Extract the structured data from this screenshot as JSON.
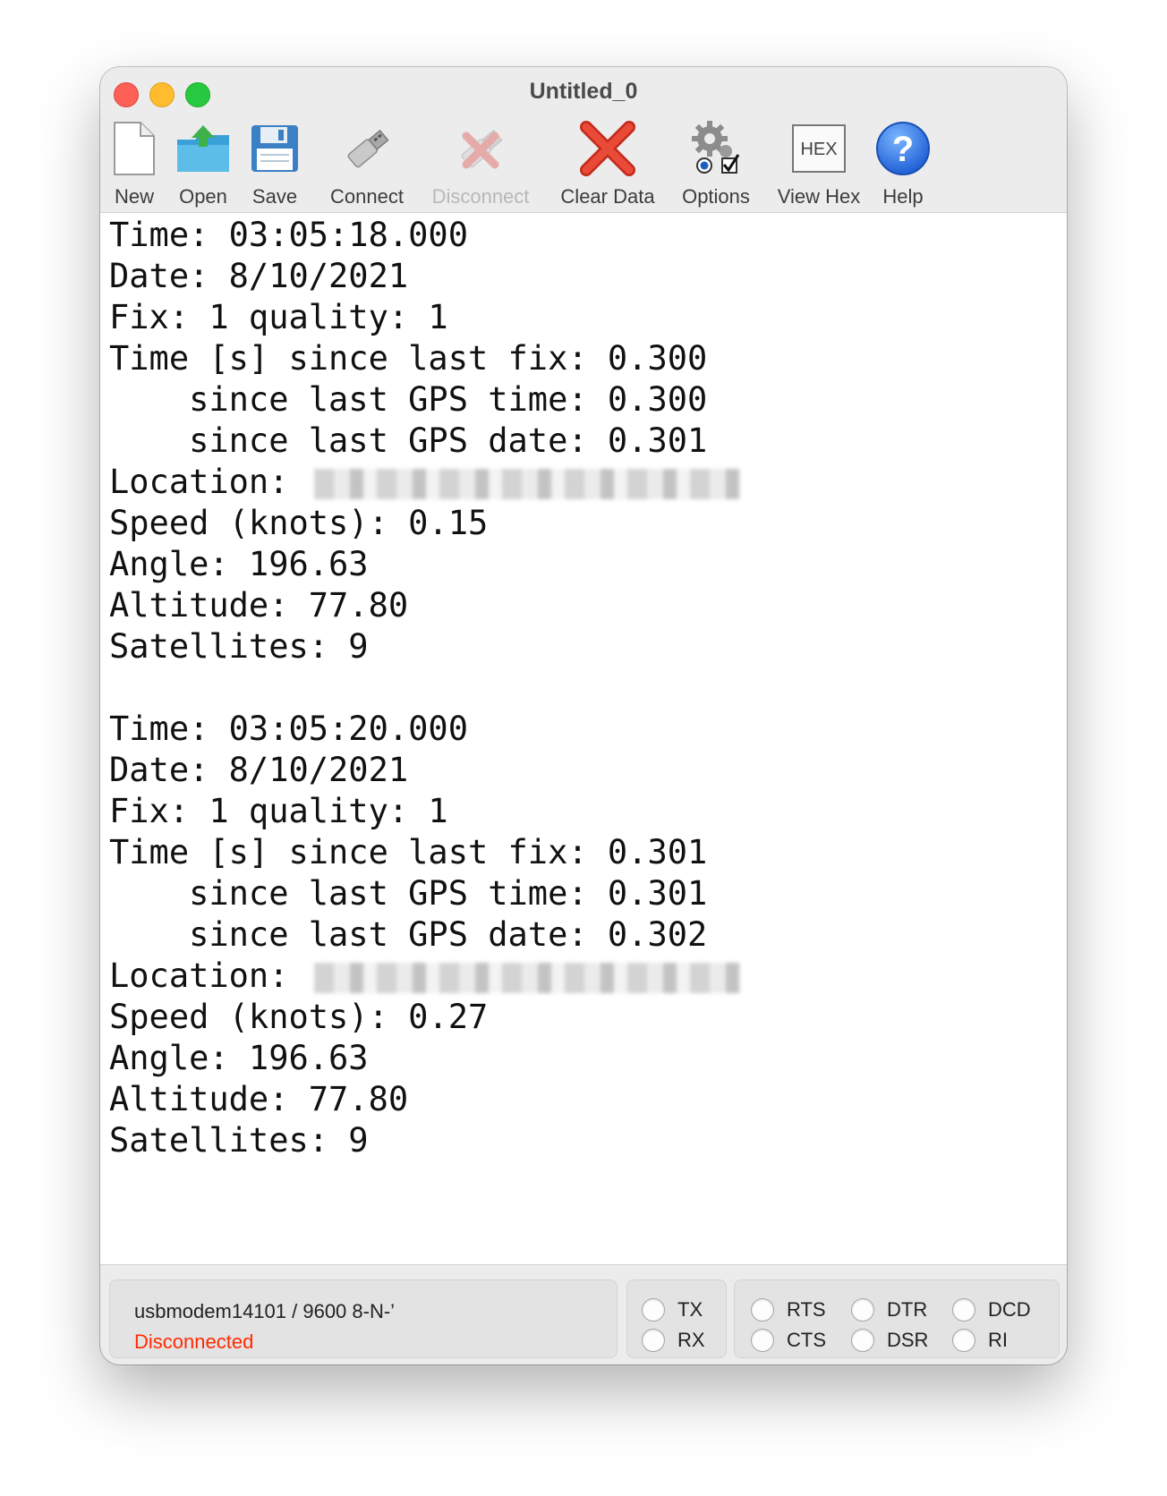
{
  "window": {
    "title": "Untitled_0"
  },
  "toolbar": {
    "items": [
      {
        "label": "New",
        "icon": "new-document-icon",
        "enabled": true
      },
      {
        "label": "Open",
        "icon": "folder-open-icon",
        "enabled": true
      },
      {
        "label": "Save",
        "icon": "floppy-disk-icon",
        "enabled": true
      },
      {
        "label": "Connect",
        "icon": "usb-plug-icon",
        "enabled": true
      },
      {
        "label": "Disconnect",
        "icon": "usb-disconnect-icon",
        "enabled": false
      },
      {
        "label": "Clear Data",
        "icon": "red-x-icon",
        "enabled": true
      },
      {
        "label": "Options",
        "icon": "gear-options-icon",
        "enabled": true
      },
      {
        "label": "View Hex",
        "icon": "hex-icon",
        "icon_text": "HEX",
        "enabled": true
      },
      {
        "label": "Help",
        "icon": "help-question-icon",
        "enabled": true
      }
    ]
  },
  "terminal": {
    "lines": [
      "Time: 03:05:18.000",
      "Date: 8/10/2021",
      "Fix: 1 quality: 1",
      "Time [s] since last fix: 0.300",
      "    since last GPS time: 0.300",
      "    since last GPS date: 0.301",
      "Location: ",
      "Speed (knots): 0.15",
      "Angle: 196.63",
      "Altitude: 77.80",
      "Satellites: 9",
      "",
      "Time: 03:05:20.000",
      "Date: 8/10/2021",
      "Fix: 1 quality: 1",
      "Time [s] since last fix: 0.301",
      "    since last GPS time: 0.301",
      "    since last GPS date: 0.302",
      "Location: ",
      "Speed (knots): 0.27",
      "Angle: 196.63",
      "Altitude: 77.80",
      "Satellites: 9"
    ],
    "redacted_lines": [
      6,
      18
    ]
  },
  "status": {
    "port": "usbmodem14101 / 9600 8-N-’",
    "connection": "Disconnected",
    "connection_color": "#ff2a00",
    "indicators": {
      "tx": "TX",
      "rx": "RX",
      "rts": "RTS",
      "cts": "CTS",
      "dtr": "DTR",
      "dsr": "DSR",
      "dcd": "DCD",
      "ri": "RI"
    }
  }
}
